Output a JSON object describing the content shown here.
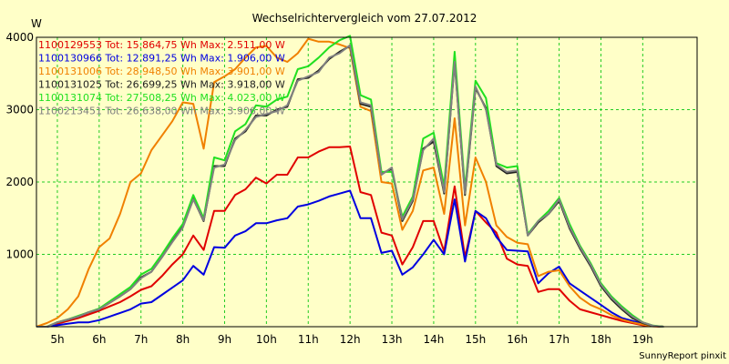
{
  "chart_data": {
    "type": "line",
    "title": "Wechselrichtervergleich vom 27.07.2012",
    "ylabel": "W",
    "footer": "SunnyReport pinxit",
    "xlim": [
      4.5,
      20.3
    ],
    "ylim": [
      0,
      4000
    ],
    "yticks": [
      1000,
      2000,
      3000,
      4000
    ],
    "xticks": [
      5,
      6,
      7,
      8,
      9,
      10,
      11,
      12,
      13,
      14,
      15,
      16,
      17,
      18,
      19
    ],
    "xtick_labels": [
      "5h",
      "6h",
      "7h",
      "8h",
      "9h",
      "10h",
      "11h",
      "12h",
      "13h",
      "14h",
      "15h",
      "16h",
      "17h",
      "18h",
      "19h"
    ],
    "grid": true,
    "legend_position": "top-left",
    "x": [
      4.5,
      4.75,
      5.0,
      5.25,
      5.5,
      5.75,
      6.0,
      6.25,
      6.5,
      6.75,
      7.0,
      7.25,
      7.5,
      7.75,
      8.0,
      8.25,
      8.5,
      8.75,
      9.0,
      9.25,
      9.5,
      9.75,
      10.0,
      10.25,
      10.5,
      10.75,
      11.0,
      11.25,
      11.5,
      11.75,
      12.0,
      12.25,
      12.5,
      12.75,
      13.0,
      13.25,
      13.5,
      13.75,
      14.0,
      14.25,
      14.5,
      14.75,
      15.0,
      15.25,
      15.5,
      15.75,
      16.0,
      16.25,
      16.5,
      16.75,
      17.0,
      17.25,
      17.5,
      17.75,
      18.0,
      18.25,
      18.5,
      18.75,
      19.0,
      19.25,
      19.5
    ],
    "series": [
      {
        "name": "1100129553 Tot: 15.864,75 Wh Max: 2.511,00 W",
        "color": "#e00000",
        "values": [
          0,
          0,
          40,
          80,
          120,
          170,
          220,
          280,
          340,
          420,
          510,
          560,
          700,
          860,
          1000,
          1260,
          1060,
          1600,
          1600,
          1820,
          1900,
          2060,
          1980,
          2100,
          2100,
          2340,
          2340,
          2420,
          2480,
          2480,
          2490,
          1860,
          1820,
          1300,
          1260,
          860,
          1100,
          1460,
          1460,
          1040,
          1940,
          960,
          1600,
          1440,
          1300,
          940,
          860,
          840,
          480,
          520,
          520,
          360,
          240,
          200,
          160,
          120,
          80,
          50,
          20,
          5,
          0
        ]
      },
      {
        "name": "1100130966 Tot: 12.891,25 Wh Max: 1.906,00 W",
        "color": "#0000e0",
        "values": [
          0,
          0,
          20,
          40,
          60,
          60,
          90,
          140,
          190,
          240,
          320,
          340,
          440,
          540,
          640,
          840,
          720,
          1100,
          1090,
          1260,
          1320,
          1430,
          1430,
          1470,
          1500,
          1660,
          1690,
          1740,
          1800,
          1840,
          1880,
          1500,
          1500,
          1020,
          1050,
          720,
          820,
          1000,
          1200,
          1000,
          1760,
          900,
          1600,
          1500,
          1240,
          1060,
          1050,
          1040,
          600,
          740,
          830,
          600,
          500,
          400,
          300,
          200,
          120,
          80,
          40,
          10,
          0
        ]
      },
      {
        "name": "1100131006 Tot: 28.948,50 Wh Max: 3.901,00 W",
        "color": "#f08000",
        "values": [
          0,
          50,
          120,
          240,
          420,
          800,
          1100,
          1220,
          1560,
          2000,
          2120,
          2440,
          2640,
          2840,
          3100,
          3080,
          2460,
          3380,
          3460,
          3560,
          3720,
          3860,
          3880,
          3720,
          3660,
          3780,
          3980,
          3940,
          3940,
          3900,
          3850,
          3040,
          2980,
          2000,
          1980,
          1340,
          1600,
          2160,
          2200,
          1560,
          2880,
          1400,
          2340,
          2000,
          1400,
          1240,
          1160,
          1140,
          700,
          760,
          780,
          560,
          400,
          300,
          240,
          160,
          100,
          60,
          30,
          8,
          0
        ]
      },
      {
        "name": "1100131025 Tot: 26.699,25 Wh Max: 3.918,00 W",
        "color": "#202020",
        "values": [
          0,
          0,
          60,
          100,
          140,
          200,
          240,
          330,
          420,
          520,
          680,
          760,
          960,
          1180,
          1380,
          1770,
          1460,
          2220,
          2220,
          2600,
          2700,
          2920,
          2920,
          3000,
          3040,
          3420,
          3440,
          3540,
          3700,
          3800,
          3880,
          3080,
          3040,
          2120,
          2180,
          1460,
          1740,
          2460,
          2560,
          1840,
          3660,
          1820,
          3300,
          3020,
          2220,
          2120,
          2140,
          1260,
          1440,
          1560,
          1740,
          1360,
          1080,
          840,
          560,
          380,
          240,
          120,
          50,
          10,
          0
        ]
      },
      {
        "name": "1100131074 Tot: 27.508,25 Wh Max: 4.023,00 W",
        "color": "#20e020",
        "values": [
          0,
          0,
          60,
          100,
          150,
          200,
          250,
          350,
          450,
          550,
          720,
          800,
          1000,
          1220,
          1420,
          1820,
          1500,
          2340,
          2300,
          2700,
          2800,
          3060,
          3040,
          3140,
          3180,
          3560,
          3600,
          3720,
          3860,
          3960,
          4020,
          3200,
          3140,
          2140,
          2140,
          1520,
          1800,
          2600,
          2680,
          1940,
          3800,
          1900,
          3400,
          3160,
          2260,
          2200,
          2220,
          1280,
          1460,
          1600,
          1780,
          1420,
          1120,
          880,
          600,
          420,
          280,
          160,
          60,
          15,
          0
        ]
      },
      {
        "name": "1100213451 Tot: 26.638,00 Wh Max: 3.906,00 W",
        "color": "#808080",
        "values": [
          0,
          0,
          60,
          100,
          140,
          200,
          240,
          330,
          420,
          520,
          670,
          760,
          960,
          1170,
          1370,
          1760,
          1470,
          2200,
          2240,
          2580,
          2720,
          2900,
          2940,
          2980,
          3060,
          3400,
          3460,
          3520,
          3720,
          3780,
          3890,
          3100,
          3060,
          2100,
          2200,
          1480,
          1760,
          2440,
          2600,
          1860,
          3660,
          1840,
          3320,
          3000,
          2240,
          2140,
          2160,
          1260,
          1460,
          1560,
          1760,
          1380,
          1100,
          860,
          580,
          400,
          260,
          140,
          60,
          12,
          0
        ]
      }
    ]
  }
}
